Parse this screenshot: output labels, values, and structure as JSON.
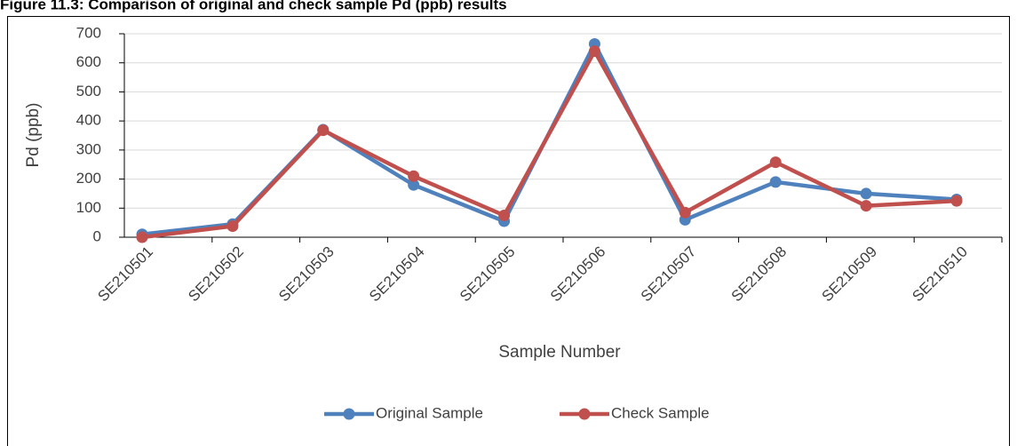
{
  "chart_data": {
    "type": "line",
    "title": "Figure 11.3: Comparison of original and check sample Pd (ppb) results",
    "x_label": "Sample Number",
    "y_label": "Pd (ppb)",
    "categories": [
      "SE210501",
      "SE210502",
      "SE210503",
      "SE210504",
      "SE210505",
      "SE210506",
      "SE210507",
      "SE210508",
      "SE210509",
      "SE210510"
    ],
    "series": [
      {
        "name": "Original Sample",
        "color": "#4f81bd",
        "values": [
          10,
          45,
          370,
          180,
          55,
          665,
          60,
          190,
          150,
          130
        ]
      },
      {
        "name": "Check Sample",
        "color": "#c0504d",
        "values": [
          0,
          38,
          368,
          210,
          75,
          640,
          85,
          258,
          108,
          125
        ]
      }
    ],
    "ylim": [
      0,
      700
    ],
    "yticks": [
      0,
      100,
      200,
      300,
      400,
      500,
      600,
      700
    ],
    "grid": true,
    "legend": "bottom"
  }
}
